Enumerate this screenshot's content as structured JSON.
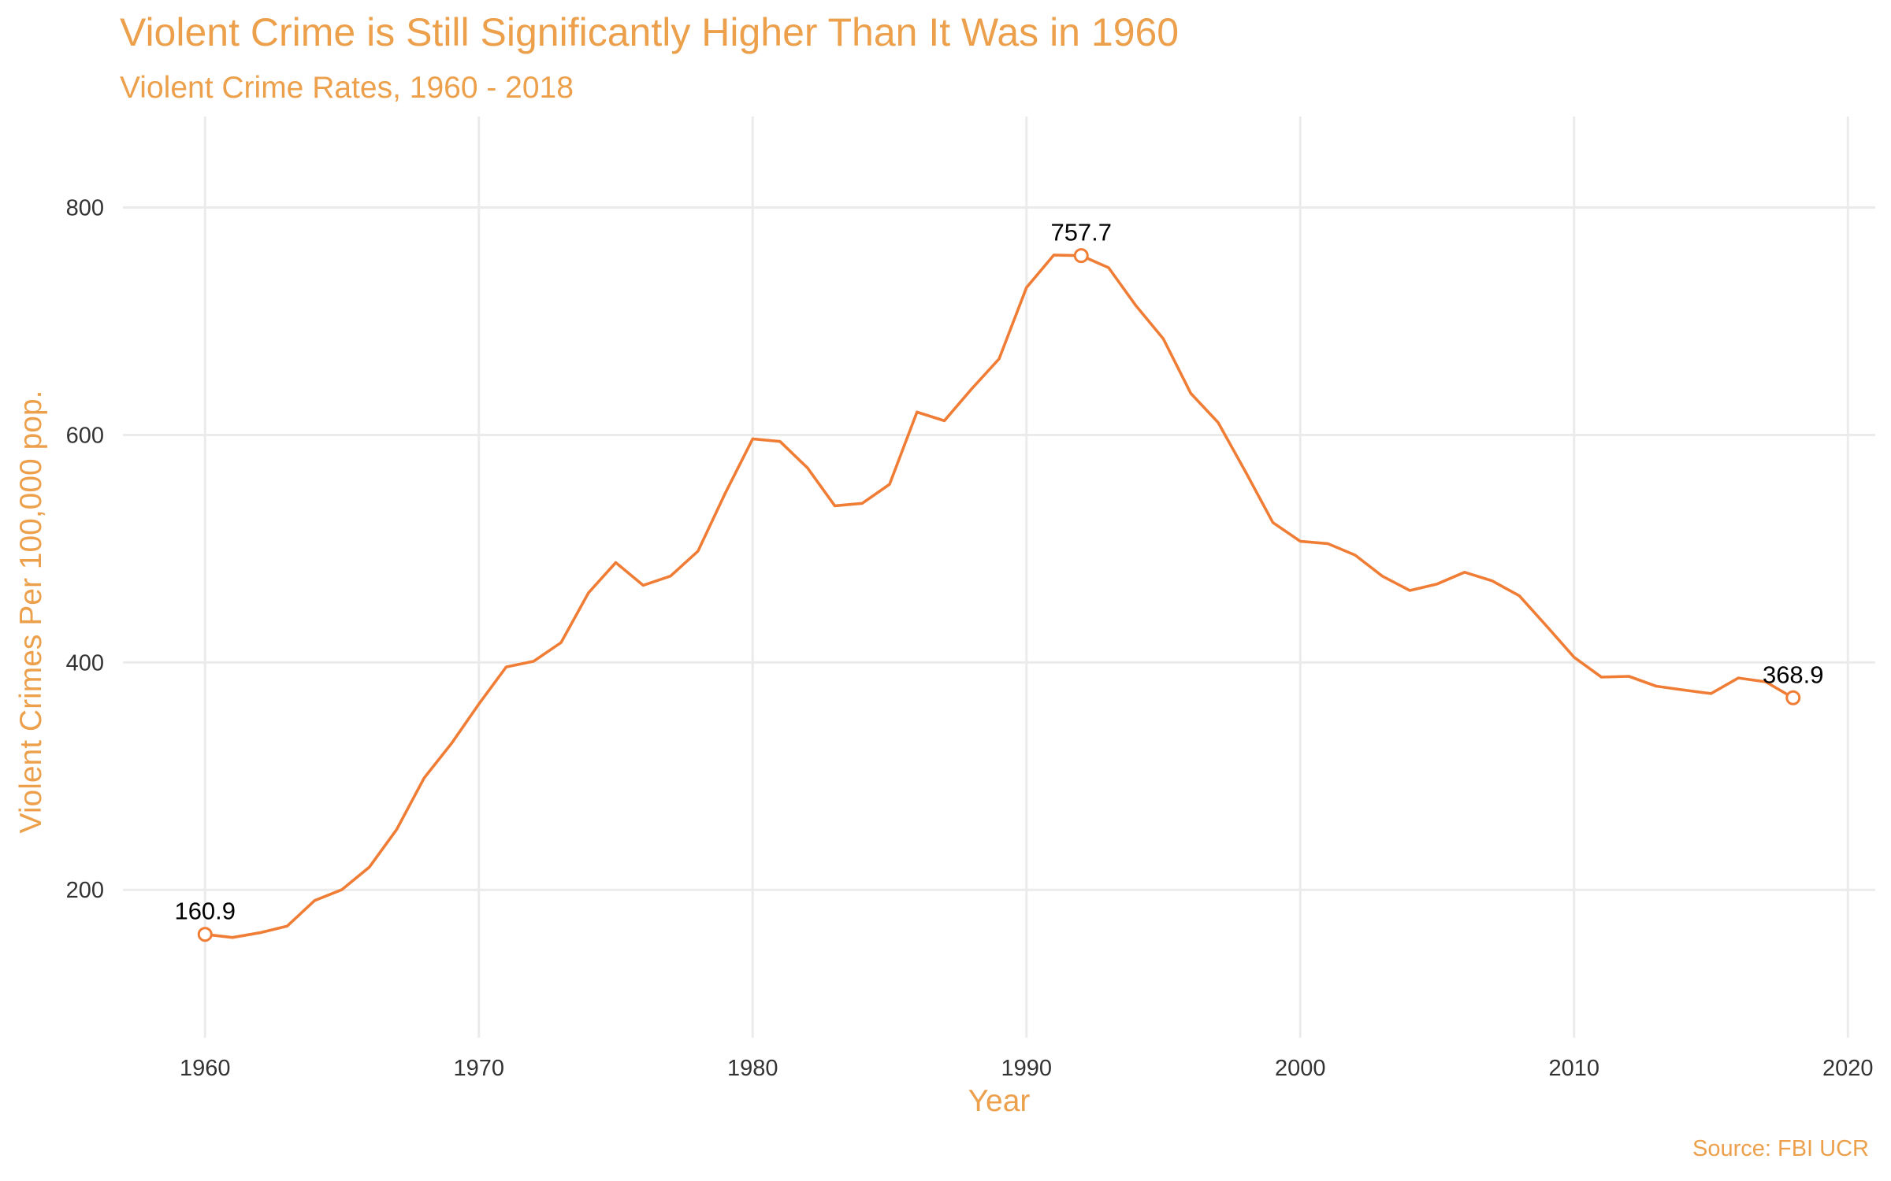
{
  "chart_data": {
    "type": "line",
    "title": "Violent Crime is Still Significantly Higher Than It Was in 1960",
    "subtitle": "Violent Crime Rates, 1960 - 2018",
    "xlabel": "Year",
    "ylabel": "Violent Crimes Per 100,000 pop.",
    "caption": "Source: FBI UCR",
    "xlim": [
      1957,
      2021
    ],
    "ylim": [
      70,
      880
    ],
    "xticks": [
      1960,
      1970,
      1980,
      1990,
      2000,
      2010,
      2020
    ],
    "yticks": [
      200,
      400,
      600,
      800
    ],
    "grid": true,
    "legend": "none",
    "colors": {
      "line": "#F07D35",
      "title": "#EDA04C",
      "grid": "#EBEBEB"
    },
    "x": [
      1960,
      1961,
      1962,
      1963,
      1964,
      1965,
      1966,
      1967,
      1968,
      1969,
      1970,
      1971,
      1972,
      1973,
      1974,
      1975,
      1976,
      1977,
      1978,
      1979,
      1980,
      1981,
      1982,
      1983,
      1984,
      1985,
      1986,
      1987,
      1988,
      1989,
      1990,
      1991,
      1992,
      1993,
      1994,
      1995,
      1996,
      1997,
      1998,
      1999,
      2000,
      2001,
      2002,
      2003,
      2004,
      2005,
      2006,
      2007,
      2008,
      2009,
      2010,
      2011,
      2012,
      2013,
      2014,
      2015,
      2016,
      2017,
      2018
    ],
    "series": [
      {
        "values": [
          160.9,
          158.1,
          162.3,
          168.2,
          190.6,
          200.2,
          220.0,
          253.2,
          298.4,
          328.7,
          363.5,
          396.0,
          401.0,
          417.4,
          461.1,
          487.8,
          467.8,
          475.9,
          497.8,
          548.9,
          596.6,
          594.3,
          571.1,
          537.7,
          539.9,
          556.6,
          620.1,
          612.5,
          640.6,
          666.9,
          729.6,
          758.2,
          757.7,
          747.1,
          713.6,
          684.5,
          636.6,
          611.0,
          567.6,
          523.0,
          506.5,
          504.5,
          494.4,
          475.8,
          463.2,
          469.0,
          479.3,
          471.8,
          458.6,
          431.9,
          404.5,
          387.1,
          387.8,
          379.1,
          375.7,
          372.6,
          386.3,
          382.9,
          368.9
        ]
      }
    ],
    "annotations": [
      {
        "x": 1960,
        "y": 160.9,
        "label": "160.9"
      },
      {
        "x": 1992,
        "y": 757.7,
        "label": "757.7"
      },
      {
        "x": 2018,
        "y": 368.9,
        "label": "368.9"
      }
    ]
  }
}
